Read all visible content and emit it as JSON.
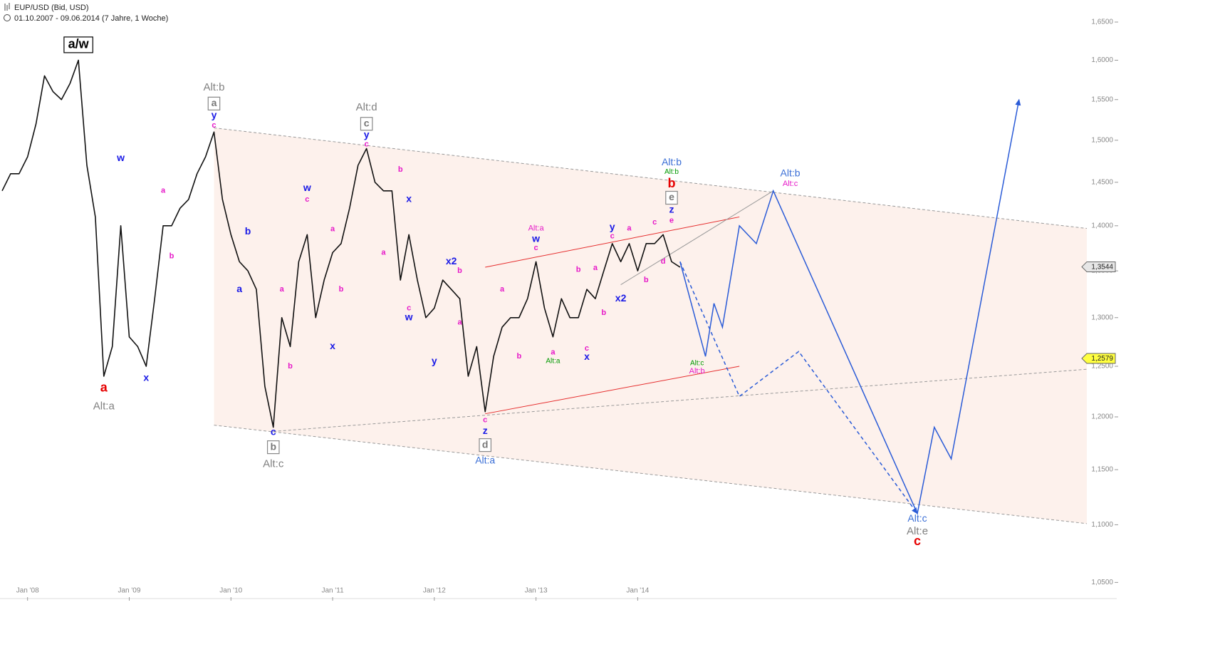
{
  "chart_data": {
    "type": "line",
    "title": "EUP/USD (Bid, USD)",
    "subtitle": "01.10.2007 - 09.06.2014 (7 Jahre, 1 Woche)",
    "log_y": true,
    "color": "#111111",
    "xlim": [
      "2007-10",
      "2018-06"
    ],
    "ylim": [
      1.04,
      1.67
    ],
    "xticks": [
      {
        "value": "2008-01",
        "label": "Jan '08"
      },
      {
        "value": "2009-01",
        "label": "Jan '09"
      },
      {
        "value": "2010-01",
        "label": "Jan '10"
      },
      {
        "value": "2011-01",
        "label": "Jan '11"
      },
      {
        "value": "2012-01",
        "label": "Jan '12"
      },
      {
        "value": "2013-01",
        "label": "Jan '13"
      },
      {
        "value": "2014-01",
        "label": "Jan '14"
      }
    ],
    "yticks": [
      {
        "value": 1.05,
        "label": "1,0500"
      },
      {
        "value": 1.1,
        "label": "1,1000"
      },
      {
        "value": 1.15,
        "label": "1,1500"
      },
      {
        "value": 1.2,
        "label": "1,2000"
      },
      {
        "value": 1.25,
        "label": "1,2500"
      },
      {
        "value": 1.3,
        "label": "1,3000"
      },
      {
        "value": 1.35,
        "label": "1,3500"
      },
      {
        "value": 1.4,
        "label": "1,4000"
      },
      {
        "value": 1.45,
        "label": "1,4500"
      },
      {
        "value": 1.5,
        "label": "1,5000"
      },
      {
        "value": 1.55,
        "label": "1,5500"
      },
      {
        "value": 1.6,
        "label": "1,6000"
      },
      {
        "value": 1.65,
        "label": "1,6500"
      }
    ],
    "x": [
      "2007-10",
      "2007-11",
      "2007-12",
      "2008-01",
      "2008-02",
      "2008-03",
      "2008-04",
      "2008-05",
      "2008-06",
      "2008-07",
      "2008-08",
      "2008-09",
      "2008-10",
      "2008-11",
      "2008-12",
      "2009-01",
      "2009-02",
      "2009-03",
      "2009-04",
      "2009-05",
      "2009-06",
      "2009-07",
      "2009-08",
      "2009-09",
      "2009-10",
      "2009-11",
      "2009-12",
      "2010-01",
      "2010-02",
      "2010-03",
      "2010-04",
      "2010-05",
      "2010-06",
      "2010-07",
      "2010-08",
      "2010-09",
      "2010-10",
      "2010-11",
      "2010-12",
      "2011-01",
      "2011-02",
      "2011-03",
      "2011-04",
      "2011-05",
      "2011-06",
      "2011-07",
      "2011-08",
      "2011-09",
      "2011-10",
      "2011-11",
      "2011-12",
      "2012-01",
      "2012-02",
      "2012-03",
      "2012-04",
      "2012-05",
      "2012-06",
      "2012-07",
      "2012-08",
      "2012-09",
      "2012-10",
      "2012-11",
      "2012-12",
      "2013-01",
      "2013-02",
      "2013-03",
      "2013-04",
      "2013-05",
      "2013-06",
      "2013-07",
      "2013-08",
      "2013-09",
      "2013-10",
      "2013-11",
      "2013-12",
      "2014-01",
      "2014-02",
      "2014-03",
      "2014-04",
      "2014-05",
      "2014-06"
    ],
    "values": [
      1.44,
      1.46,
      1.46,
      1.48,
      1.52,
      1.58,
      1.56,
      1.55,
      1.57,
      1.6,
      1.47,
      1.41,
      1.24,
      1.27,
      1.4,
      1.28,
      1.27,
      1.25,
      1.32,
      1.4,
      1.4,
      1.42,
      1.43,
      1.46,
      1.48,
      1.51,
      1.43,
      1.39,
      1.36,
      1.35,
      1.33,
      1.23,
      1.19,
      1.3,
      1.27,
      1.36,
      1.39,
      1.3,
      1.34,
      1.37,
      1.38,
      1.42,
      1.47,
      1.49,
      1.45,
      1.44,
      1.44,
      1.34,
      1.39,
      1.34,
      1.3,
      1.31,
      1.34,
      1.33,
      1.32,
      1.24,
      1.27,
      1.205,
      1.26,
      1.29,
      1.3,
      1.3,
      1.32,
      1.36,
      1.31,
      1.28,
      1.32,
      1.3,
      1.3,
      1.33,
      1.32,
      1.35,
      1.38,
      1.36,
      1.38,
      1.35,
      1.38,
      1.38,
      1.39,
      1.36,
      1.354
    ],
    "channel": {
      "color": "#fdf1ec",
      "x": [
        "2009-11",
        "2018-06"
      ],
      "upper": [
        1.515,
        1.397
      ],
      "lower": [
        1.192,
        1.101
      ]
    },
    "trend_lines": [
      {
        "color": "#999999",
        "dashed": true,
        "x": [
          "2009-11",
          "2018-06"
        ],
        "values": [
          1.515,
          1.397
        ]
      },
      {
        "color": "#999999",
        "dashed": true,
        "x": [
          "2009-11",
          "2018-06"
        ],
        "values": [
          1.192,
          1.101
        ]
      },
      {
        "color": "#999999",
        "dashed": true,
        "x": [
          "2010-06",
          "2018-06"
        ],
        "values": [
          1.186,
          1.247
        ]
      },
      {
        "color": "#e62e2e",
        "dashed": false,
        "x": [
          "2012-07",
          "2015-01"
        ],
        "values": [
          1.354,
          1.41
        ]
      },
      {
        "color": "#e62e2e",
        "dashed": false,
        "x": [
          "2012-07",
          "2015-01"
        ],
        "values": [
          1.203,
          1.25
        ]
      },
      {
        "color": "#999999",
        "dashed": false,
        "x": [
          "2013-11",
          "2015-05"
        ],
        "values": [
          1.335,
          1.44
        ]
      }
    ],
    "projections": [
      {
        "color": "#2a5bd7",
        "dashed": false,
        "x": [
          "2014-06",
          "2014-09",
          "2014-10",
          "2014-11",
          "2015-01",
          "2015-03",
          "2015-05",
          "2016-10",
          "2016-12",
          "2017-02",
          "2017-10"
        ],
        "values": [
          1.36,
          1.26,
          1.315,
          1.29,
          1.4,
          1.38,
          1.44,
          1.11,
          1.19,
          1.16,
          1.55
        ]
      },
      {
        "color": "#2a5bd7",
        "dashed": true,
        "x": [
          "2014-06",
          "2015-01",
          "2015-08",
          "2016-10"
        ],
        "values": [
          1.36,
          1.22,
          1.265,
          1.11
        ]
      }
    ],
    "annotations": [
      {
        "text": "a/w",
        "x": "2008-07",
        "y": 1.62,
        "color": "#000000",
        "boxed": true
      },
      {
        "text": "a",
        "x": "2008-10",
        "y": 1.228,
        "color": "#e60000",
        "boxed": false
      },
      {
        "text": "Alt:a",
        "x": "2008-10",
        "y": 1.21,
        "color": "#808080",
        "boxed": false
      },
      {
        "text": "w",
        "x": "2008-12",
        "y": 1.478,
        "color": "#1a1ae6",
        "boxed": false
      },
      {
        "text": "x",
        "x": "2009-03",
        "y": 1.238,
        "color": "#1a1ae6",
        "boxed": false
      },
      {
        "text": "a",
        "x": "2009-05",
        "y": 1.44,
        "color": "#e619c8",
        "boxed": false
      },
      {
        "text": "b",
        "x": "2009-06",
        "y": 1.366,
        "color": "#e619c8",
        "boxed": false
      },
      {
        "text": "Alt:b",
        "x": "2009-11",
        "y": 1.565,
        "color": "#808080",
        "boxed": false
      },
      {
        "text": "a",
        "x": "2009-11",
        "y": 1.545,
        "color": "#808080",
        "boxed": true
      },
      {
        "text": "y",
        "x": "2009-11",
        "y": 1.53,
        "color": "#1a1ae6",
        "boxed": false
      },
      {
        "text": "c",
        "x": "2009-11",
        "y": 1.518,
        "color": "#e619c8",
        "boxed": false
      },
      {
        "text": "b",
        "x": "2010-03",
        "y": 1.393,
        "color": "#1a1ae6",
        "boxed": false
      },
      {
        "text": "a",
        "x": "2010-02",
        "y": 1.33,
        "color": "#1a1ae6",
        "boxed": false
      },
      {
        "text": "c",
        "x": "2010-06",
        "y": 1.185,
        "color": "#1a1ae6",
        "boxed": false
      },
      {
        "text": "b",
        "x": "2010-06",
        "y": 1.171,
        "color": "#808080",
        "boxed": true
      },
      {
        "text": "Alt:c",
        "x": "2010-06",
        "y": 1.155,
        "color": "#808080",
        "boxed": false
      },
      {
        "text": "a",
        "x": "2010-07",
        "y": 1.33,
        "color": "#e619c8",
        "boxed": false
      },
      {
        "text": "b",
        "x": "2010-08",
        "y": 1.25,
        "color": "#e619c8",
        "boxed": false
      },
      {
        "text": "w",
        "x": "2010-10",
        "y": 1.443,
        "color": "#1a1ae6",
        "boxed": false
      },
      {
        "text": "c",
        "x": "2010-10",
        "y": 1.43,
        "color": "#e619c8",
        "boxed": false
      },
      {
        "text": "x",
        "x": "2011-01",
        "y": 1.27,
        "color": "#1a1ae6",
        "boxed": false
      },
      {
        "text": "a",
        "x": "2011-01",
        "y": 1.396,
        "color": "#e619c8",
        "boxed": false
      },
      {
        "text": "b",
        "x": "2011-02",
        "y": 1.33,
        "color": "#e619c8",
        "boxed": false
      },
      {
        "text": "Alt:d",
        "x": "2011-05",
        "y": 1.54,
        "color": "#808080",
        "boxed": false
      },
      {
        "text": "c",
        "x": "2011-05",
        "y": 1.52,
        "color": "#808080",
        "boxed": true
      },
      {
        "text": "y",
        "x": "2011-05",
        "y": 1.506,
        "color": "#1a1ae6",
        "boxed": false
      },
      {
        "text": "c",
        "x": "2011-05",
        "y": 1.495,
        "color": "#e619c8",
        "boxed": false
      },
      {
        "text": "a",
        "x": "2011-07",
        "y": 1.37,
        "color": "#e619c8",
        "boxed": false
      },
      {
        "text": "b",
        "x": "2011-09",
        "y": 1.465,
        "color": "#e619c8",
        "boxed": false
      },
      {
        "text": "x",
        "x": "2011-10",
        "y": 1.43,
        "color": "#1a1ae6",
        "boxed": false
      },
      {
        "text": "c",
        "x": "2011-10",
        "y": 1.31,
        "color": "#e619c8",
        "boxed": false
      },
      {
        "text": "w",
        "x": "2011-10",
        "y": 1.3,
        "color": "#1a1ae6",
        "boxed": false
      },
      {
        "text": "y",
        "x": "2012-01",
        "y": 1.255,
        "color": "#1a1ae6",
        "boxed": false
      },
      {
        "text": "x2",
        "x": "2012-03",
        "y": 1.36,
        "color": "#1a1ae6",
        "boxed": false
      },
      {
        "text": "b",
        "x": "2012-04",
        "y": 1.35,
        "color": "#e619c8",
        "boxed": false
      },
      {
        "text": "a",
        "x": "2012-04",
        "y": 1.295,
        "color": "#e619c8",
        "boxed": false
      },
      {
        "text": "c",
        "x": "2012-07",
        "y": 1.197,
        "color": "#e619c8",
        "boxed": false
      },
      {
        "text": "z",
        "x": "2012-07",
        "y": 1.186,
        "color": "#1a1ae6",
        "boxed": false
      },
      {
        "text": "d",
        "x": "2012-07",
        "y": 1.173,
        "color": "#808080",
        "boxed": true
      },
      {
        "text": "Alt:a",
        "x": "2012-07",
        "y": 1.158,
        "color": "#3b6fd6",
        "boxed": false
      },
      {
        "text": "a",
        "x": "2012-09",
        "y": 1.33,
        "color": "#e619c8",
        "boxed": false
      },
      {
        "text": "b",
        "x": "2012-11",
        "y": 1.26,
        "color": "#e619c8",
        "boxed": false
      },
      {
        "text": "Alt:a",
        "x": "2013-01",
        "y": 1.397,
        "color": "#e619c8",
        "boxed": false
      },
      {
        "text": "w",
        "x": "2013-01",
        "y": 1.385,
        "color": "#1a1ae6",
        "boxed": false
      },
      {
        "text": "c",
        "x": "2013-01",
        "y": 1.375,
        "color": "#e619c8",
        "boxed": false
      },
      {
        "text": "a",
        "x": "2013-03",
        "y": 1.264,
        "color": "#e619c8",
        "boxed": false
      },
      {
        "text": "Alt:a",
        "x": "2013-03",
        "y": 1.255,
        "color": "#009900",
        "boxed": false
      },
      {
        "text": "b",
        "x": "2013-06",
        "y": 1.351,
        "color": "#e619c8",
        "boxed": false
      },
      {
        "text": "c",
        "x": "2013-07",
        "y": 1.268,
        "color": "#e619c8",
        "boxed": false
      },
      {
        "text": "x",
        "x": "2013-07",
        "y": 1.259,
        "color": "#1a1ae6",
        "boxed": false
      },
      {
        "text": "a",
        "x": "2013-08",
        "y": 1.353,
        "color": "#e619c8",
        "boxed": false
      },
      {
        "text": "b",
        "x": "2013-09",
        "y": 1.305,
        "color": "#e619c8",
        "boxed": false
      },
      {
        "text": "y",
        "x": "2013-10",
        "y": 1.398,
        "color": "#1a1ae6",
        "boxed": false
      },
      {
        "text": "c",
        "x": "2013-10",
        "y": 1.388,
        "color": "#e619c8",
        "boxed": false
      },
      {
        "text": "x2",
        "x": "2013-11",
        "y": 1.32,
        "color": "#1a1ae6",
        "boxed": false
      },
      {
        "text": "a",
        "x": "2013-12",
        "y": 1.397,
        "color": "#e619c8",
        "boxed": false
      },
      {
        "text": "b",
        "x": "2014-02",
        "y": 1.34,
        "color": "#e619c8",
        "boxed": false
      },
      {
        "text": "c",
        "x": "2014-03",
        "y": 1.404,
        "color": "#e619c8",
        "boxed": false
      },
      {
        "text": "d",
        "x": "2014-04",
        "y": 1.36,
        "color": "#e619c8",
        "boxed": false
      },
      {
        "text": "e",
        "x": "2014-05",
        "y": 1.406,
        "color": "#e619c8",
        "boxed": false
      },
      {
        "text": "z",
        "x": "2014-05",
        "y": 1.418,
        "color": "#1a1ae6",
        "boxed": false
      },
      {
        "text": "e",
        "x": "2014-05",
        "y": 1.432,
        "color": "#808080",
        "boxed": true
      },
      {
        "text": "b",
        "x": "2014-05",
        "y": 1.448,
        "color": "#e60000",
        "boxed": false
      },
      {
        "text": "Alt:b",
        "x": "2014-05",
        "y": 1.462,
        "color": "#009900",
        "boxed": false
      },
      {
        "text": "Alt:b",
        "x": "2014-05",
        "y": 1.473,
        "color": "#3b6fd6",
        "boxed": false
      },
      {
        "text": "Alt:c",
        "x": "2014-08",
        "y": 1.253,
        "color": "#009900",
        "boxed": false
      },
      {
        "text": "Alt:b",
        "x": "2014-08",
        "y": 1.245,
        "color": "#e619c8",
        "boxed": false
      },
      {
        "text": "Alt:b",
        "x": "2015-07",
        "y": 1.46,
        "color": "#3b6fd6",
        "boxed": false
      },
      {
        "text": "Alt:c",
        "x": "2015-07",
        "y": 1.448,
        "color": "#e619c8",
        "boxed": false
      },
      {
        "text": "Alt:c",
        "x": "2016-10",
        "y": 1.105,
        "color": "#3b6fd6",
        "boxed": false
      },
      {
        "text": "Alt:e",
        "x": "2016-10",
        "y": 1.094,
        "color": "#808080",
        "boxed": false
      },
      {
        "text": "c",
        "x": "2016-10",
        "y": 1.085,
        "color": "#e60000",
        "boxed": false
      }
    ],
    "price_tags": [
      {
        "value": 1.3544,
        "label": "1,3544",
        "color": "#e6e6e6"
      },
      {
        "value": 1.2579,
        "label": "1,2579",
        "color": "#ffff40"
      }
    ]
  }
}
